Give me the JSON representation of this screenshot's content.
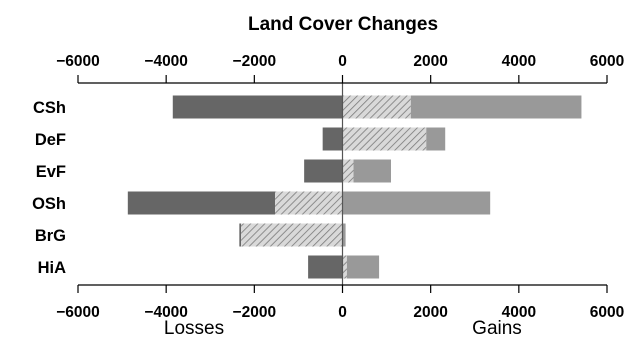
{
  "chart_data": {
    "type": "bar",
    "orientation": "horizontal",
    "title": "Land Cover Changes",
    "categories": [
      "CSh",
      "DeF",
      "EvF",
      "OSh",
      "BrG",
      "HiA"
    ],
    "xlim": [
      -6000,
      6000
    ],
    "ticks": [
      -6000,
      -4000,
      -2000,
      0,
      2000,
      4000,
      6000
    ],
    "tick_labels": [
      "−6000",
      "−4000",
      "−2000",
      "0",
      "2000",
      "4000",
      "6000"
    ],
    "axis_positions": "top and bottom",
    "grid": false,
    "left_label": "Losses",
    "right_label": "Gains",
    "segments": {
      "CSh": [
        {
          "from": -3850,
          "to": 0,
          "fill": "dark"
        },
        {
          "from": 0,
          "to": 1550,
          "fill": "hatched"
        },
        {
          "from": 1550,
          "to": 5420,
          "fill": "light"
        }
      ],
      "DeF": [
        {
          "from": -450,
          "to": 0,
          "fill": "dark"
        },
        {
          "from": 0,
          "to": 1900,
          "fill": "hatched"
        },
        {
          "from": 1900,
          "to": 2330,
          "fill": "light"
        }
      ],
      "EvF": [
        {
          "from": -870,
          "to": 0,
          "fill": "dark"
        },
        {
          "from": 0,
          "to": 250,
          "fill": "hatched"
        },
        {
          "from": 250,
          "to": 1100,
          "fill": "light"
        }
      ],
      "OSh": [
        {
          "from": -4870,
          "to": -1530,
          "fill": "dark"
        },
        {
          "from": -1530,
          "to": 0,
          "fill": "hatched"
        },
        {
          "from": 0,
          "to": 3350,
          "fill": "light"
        }
      ],
      "BrG": [
        {
          "from": -2340,
          "to": -2300,
          "fill": "dark"
        },
        {
          "from": -2300,
          "to": 0,
          "fill": "hatched"
        },
        {
          "from": 0,
          "to": 70,
          "fill": "light"
        }
      ],
      "HiA": [
        {
          "from": -780,
          "to": 0,
          "fill": "dark"
        },
        {
          "from": 0,
          "to": 100,
          "fill": "hatched"
        },
        {
          "from": 100,
          "to": 830,
          "fill": "light"
        }
      ]
    },
    "colors": {
      "dark": "#666666",
      "hatched": "#d9d9d9",
      "hatch_line": "#7a7a7a",
      "light": "#999999",
      "axis": "#000000"
    }
  }
}
